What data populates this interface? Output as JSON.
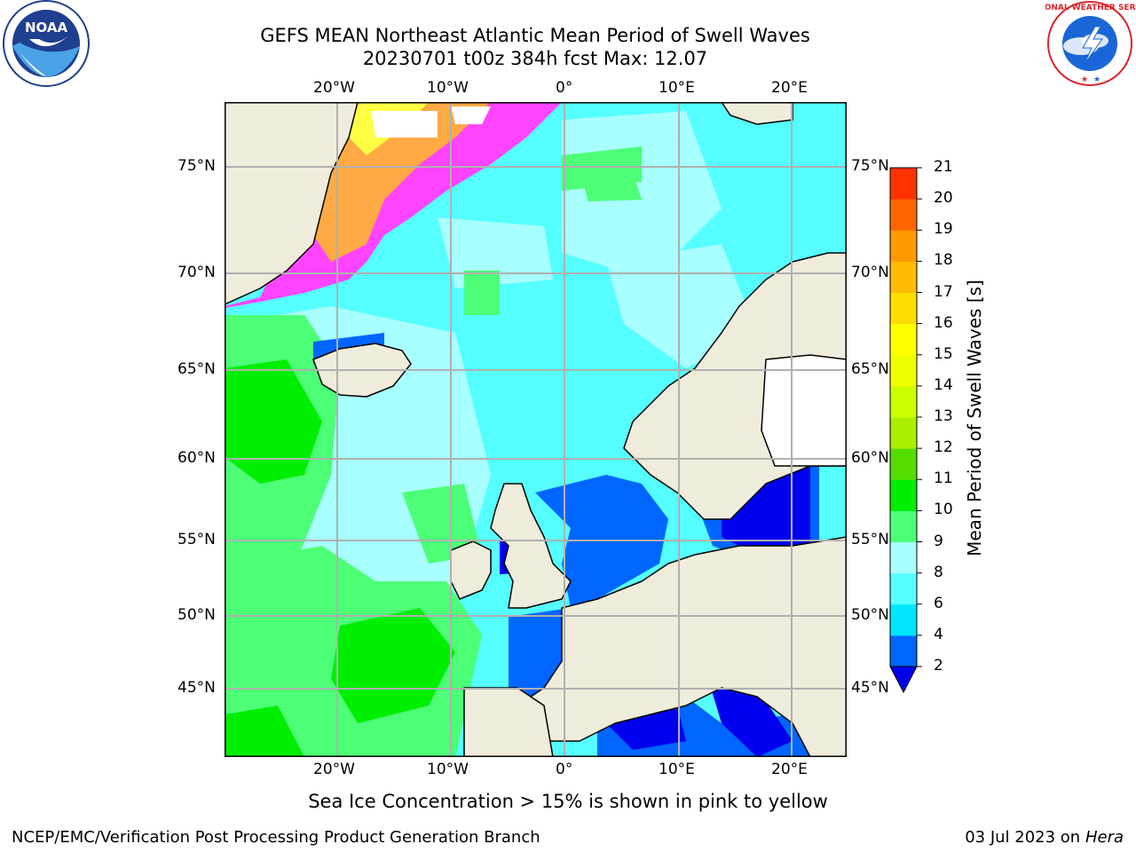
{
  "header": {
    "title_line1": "GEFS MEAN Northeast Atlantic Mean Period of Swell Waves",
    "title_line2": "20230701 t00z 384h fcst   Max: 12.07"
  },
  "logos": {
    "left": {
      "name": "NOAA",
      "ring_text": "NATIONAL OCEANIC AND ATMOSPHERIC ADMINISTRATION · U.S. DEPARTMENT OF COMMERCE",
      "icon": "noaa-logo"
    },
    "right": {
      "name": "NATIONAL WEATHER SERVICE",
      "icon": "nws-logo"
    }
  },
  "map": {
    "lon_labels_top": [
      "20°W",
      "10°W",
      "0°",
      "10°E",
      "20°E"
    ],
    "lon_labels_bottom": [
      "20°W",
      "10°W",
      "0°",
      "10°E",
      "20°E"
    ],
    "lat_labels_left": [
      "75°N",
      "70°N",
      "65°N",
      "60°N",
      "55°N",
      "50°N",
      "45°N"
    ],
    "lat_labels_right": [
      "75°N",
      "70°N",
      "65°N",
      "60°N",
      "55°N",
      "50°N",
      "45°N"
    ],
    "colors": {
      "land": "#efecdc",
      "grid": "#b0b0b0",
      "sea_ice": [
        "#ff44ff",
        "#ffaa44",
        "#ffff44"
      ]
    }
  },
  "colorbar": {
    "label": "Mean Period of Swell Waves [s]",
    "ticks": [
      "2",
      "4",
      "6",
      "8",
      "9",
      "10",
      "11",
      "12",
      "13",
      "14",
      "15",
      "16",
      "17",
      "18",
      "19",
      "20",
      "21"
    ],
    "colors": [
      "#0066ff",
      "#00e6ff",
      "#55ffff",
      "#a8ffff",
      "#4cff77",
      "#00ee00",
      "#55dd00",
      "#aaee00",
      "#ccff00",
      "#eeff00",
      "#ffff00",
      "#ffdd00",
      "#ffbb00",
      "#ff9900",
      "#ff6600",
      "#ff3300"
    ],
    "under_color": "#0000ee"
  },
  "notes": {
    "sea_ice": "Sea Ice Concentration > 15% is shown in pink to yellow"
  },
  "footer": {
    "left": "NCEP/EMC/Verification Post Processing Product Generation Branch",
    "right_date": "03 Jul 2023 on ",
    "right_host": "Hera"
  }
}
